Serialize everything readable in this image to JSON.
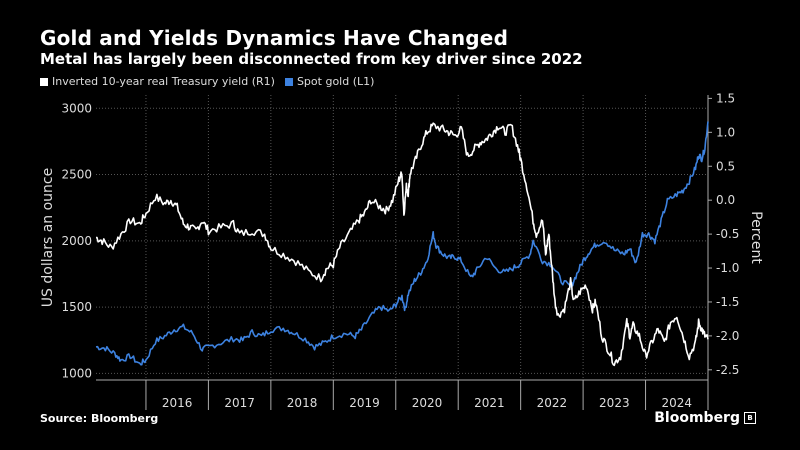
{
  "header": {
    "title": "Gold and Yields Dynamics Have Changed",
    "subtitle": "Metal has largely been disconnected from key driver since 2022"
  },
  "footer": {
    "source": "Source: Bloomberg",
    "brand": "Bloomberg"
  },
  "colors": {
    "gold": "#3d82e0",
    "yield": "#ffffff",
    "grid": "#555555"
  },
  "chart_data": {
    "type": "line",
    "x_tick_labels": [
      "2016",
      "2017",
      "2018",
      "2019",
      "2020",
      "2021",
      "2022",
      "2023",
      "2024"
    ],
    "x_range": [
      2015.2,
      2025.0
    ],
    "left_axis": {
      "label": "US dollars an ounce",
      "range": [
        950,
        3100
      ],
      "ticks": [
        1000,
        1500,
        2000,
        2500,
        3000
      ]
    },
    "right_axis": {
      "label": "Percent",
      "range": [
        -2.65,
        1.55
      ],
      "ticks": [
        -2.5,
        -2.0,
        -1.5,
        -1.0,
        -0.5,
        0.0,
        0.5,
        1.0,
        1.5
      ],
      "tick_labels": [
        "-2.5",
        "-2.0",
        "-1.5",
        "-1.0",
        "-0.5",
        "0.0",
        "0.5",
        "1.0",
        "1.5"
      ]
    },
    "grid": "dotted",
    "legend_placement": "top-left",
    "series": [
      {
        "name": "Inverted 10-year real Treasury yield (R1)",
        "axis": "right",
        "x": [
          2015.2,
          2015.3,
          2015.45,
          2015.6,
          2015.75,
          2015.9,
          2016.0,
          2016.15,
          2016.3,
          2016.4,
          2016.5,
          2016.6,
          2016.7,
          2016.8,
          2016.9,
          2017.0,
          2017.2,
          2017.4,
          2017.5,
          2017.7,
          2017.9,
          2018.0,
          2018.2,
          2018.4,
          2018.6,
          2018.8,
          2018.9,
          2019.0,
          2019.1,
          2019.25,
          2019.4,
          2019.5,
          2019.6,
          2019.75,
          2019.85,
          2019.95,
          2020.05,
          2020.1,
          2020.13,
          2020.17,
          2020.2,
          2020.23,
          2020.3,
          2020.4,
          2020.5,
          2020.6,
          2020.75,
          2020.85,
          2020.95,
          2021.05,
          2021.15,
          2021.25,
          2021.35,
          2021.45,
          2021.55,
          2021.65,
          2021.75,
          2021.85,
          2021.95,
          2022.0,
          2022.1,
          2022.2,
          2022.25,
          2022.35,
          2022.4,
          2022.45,
          2022.5,
          2022.55,
          2022.6,
          2022.7,
          2022.8,
          2022.85,
          2022.95,
          2023.05,
          2023.15,
          2023.2,
          2023.3,
          2023.4,
          2023.5,
          2023.6,
          2023.7,
          2023.75,
          2023.8,
          2023.9,
          2024.0,
          2024.1,
          2024.2,
          2024.3,
          2024.4,
          2024.5,
          2024.6,
          2024.7,
          2024.8,
          2024.85,
          2024.9,
          2024.95,
          2025.0
        ],
        "values": [
          -0.55,
          -0.6,
          -0.7,
          -0.5,
          -0.3,
          -0.35,
          -0.2,
          0.05,
          -0.05,
          0.0,
          -0.1,
          -0.35,
          -0.4,
          -0.45,
          -0.3,
          -0.45,
          -0.4,
          -0.35,
          -0.5,
          -0.45,
          -0.5,
          -0.7,
          -0.8,
          -0.9,
          -1.05,
          -1.15,
          -1.0,
          -0.95,
          -0.7,
          -0.5,
          -0.3,
          -0.2,
          0.0,
          -0.1,
          -0.15,
          0.0,
          0.3,
          0.4,
          -0.2,
          0.2,
          0.1,
          0.4,
          0.55,
          0.8,
          1.0,
          1.1,
          1.05,
          1.0,
          0.95,
          1.05,
          0.65,
          0.75,
          0.85,
          0.9,
          1.0,
          1.1,
          1.0,
          1.1,
          0.8,
          0.6,
          0.2,
          -0.3,
          -0.5,
          -0.3,
          -0.8,
          -0.5,
          -1.0,
          -1.5,
          -1.7,
          -1.6,
          -1.2,
          -1.5,
          -1.35,
          -1.25,
          -1.6,
          -1.5,
          -2.0,
          -2.2,
          -2.4,
          -2.3,
          -1.8,
          -2.0,
          -1.85,
          -2.0,
          -2.3,
          -2.1,
          -1.9,
          -2.1,
          -1.8,
          -1.7,
          -2.0,
          -2.3,
          -2.1,
          -1.8,
          -1.9,
          -2.0,
          -2.05
        ]
      },
      {
        "name": "Spot gold (L1)",
        "axis": "left",
        "x": [
          2015.2,
          2015.35,
          2015.5,
          2015.6,
          2015.75,
          2015.9,
          2016.0,
          2016.15,
          2016.3,
          2016.45,
          2016.6,
          2016.75,
          2016.9,
          2017.0,
          2017.2,
          2017.4,
          2017.55,
          2017.7,
          2017.85,
          2018.0,
          2018.2,
          2018.35,
          2018.55,
          2018.7,
          2018.85,
          2019.0,
          2019.2,
          2019.35,
          2019.45,
          2019.6,
          2019.75,
          2019.9,
          2020.0,
          2020.1,
          2020.15,
          2020.2,
          2020.3,
          2020.4,
          2020.5,
          2020.6,
          2020.65,
          2020.75,
          2020.85,
          2020.95,
          2021.05,
          2021.2,
          2021.3,
          2021.45,
          2021.6,
          2021.75,
          2021.9,
          2022.0,
          2022.15,
          2022.2,
          2022.35,
          2022.5,
          2022.65,
          2022.8,
          2022.9,
          2023.0,
          2023.1,
          2023.2,
          2023.35,
          2023.5,
          2023.65,
          2023.75,
          2023.85,
          2023.95,
          2024.05,
          2024.15,
          2024.25,
          2024.35,
          2024.5,
          2024.6,
          2024.7,
          2024.8,
          2024.85,
          2024.9,
          2024.95,
          2025.0
        ],
        "values": [
          1200,
          1190,
          1150,
          1100,
          1130,
          1070,
          1100,
          1240,
          1280,
          1330,
          1350,
          1300,
          1180,
          1200,
          1230,
          1260,
          1250,
          1310,
          1280,
          1330,
          1340,
          1310,
          1260,
          1200,
          1230,
          1280,
          1300,
          1280,
          1330,
          1430,
          1500,
          1470,
          1520,
          1580,
          1480,
          1600,
          1700,
          1760,
          1850,
          2050,
          1960,
          1900,
          1870,
          1880,
          1850,
          1720,
          1780,
          1880,
          1790,
          1760,
          1800,
          1830,
          1900,
          2000,
          1850,
          1820,
          1700,
          1650,
          1750,
          1850,
          1920,
          1970,
          2000,
          1930,
          1900,
          1940,
          1830,
          2050,
          2050,
          2000,
          2150,
          2300,
          2350,
          2380,
          2450,
          2550,
          2650,
          2620,
          2700,
          2900
        ]
      }
    ]
  }
}
